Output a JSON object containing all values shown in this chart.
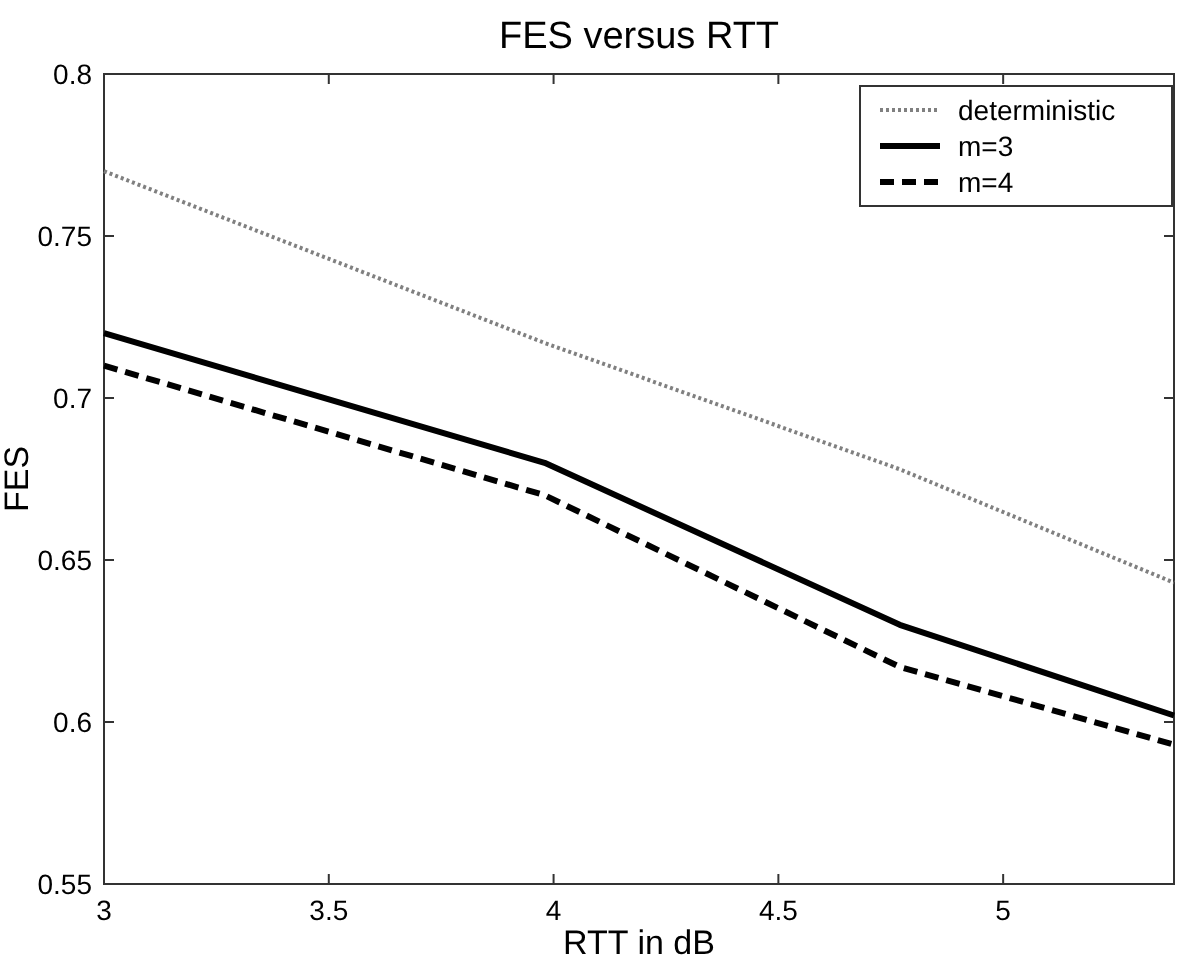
{
  "chart_data": {
    "type": "line",
    "title": "FES versus RTT",
    "xlabel": "RTT in dB",
    "ylabel": "FES",
    "x": [
      3,
      3.98,
      4.77,
      5.38
    ],
    "series": [
      {
        "name": "deterministic",
        "color": "#808080",
        "line_style": "dotted",
        "values": [
          0.77,
          0.717,
          0.678,
          0.643
        ]
      },
      {
        "name": "m=3",
        "color": "#000000",
        "line_style": "solid",
        "values": [
          0.72,
          0.68,
          0.63,
          0.602
        ]
      },
      {
        "name": "m=4",
        "color": "#000000",
        "line_style": "dashed",
        "values": [
          0.71,
          0.67,
          0.617,
          0.593
        ]
      }
    ],
    "xlim": [
      3,
      5.38
    ],
    "xticks": [
      3,
      3.5,
      4,
      4.5,
      5
    ],
    "ylim": [
      0.55,
      0.8
    ],
    "yticks": [
      0.55,
      0.6,
      0.65,
      0.7,
      0.75,
      0.8
    ],
    "grid": false,
    "legend": "top right",
    "marker": "none"
  }
}
